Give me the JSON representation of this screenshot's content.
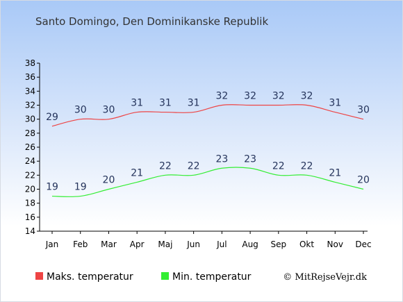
{
  "chart_data": {
    "type": "line",
    "title": "Santo Domingo, Den Dominikanske Republik",
    "categories": [
      "Jan",
      "Feb",
      "Mar",
      "Apr",
      "Maj",
      "Jun",
      "Jul",
      "Aug",
      "Sep",
      "Okt",
      "Nov",
      "Dec"
    ],
    "series": [
      {
        "name": "Maks. temperatur",
        "color": "#ee4444",
        "values": [
          29,
          30,
          30,
          31,
          31,
          31,
          32,
          32,
          32,
          32,
          31,
          30
        ]
      },
      {
        "name": "Min. temperatur",
        "color": "#33ee33",
        "values": [
          19,
          19,
          20,
          21,
          22,
          22,
          23,
          23,
          22,
          22,
          21,
          20
        ]
      }
    ],
    "ylim": [
      14,
      38
    ],
    "yticks": [
      14,
      16,
      18,
      20,
      22,
      24,
      26,
      28,
      30,
      32,
      34,
      36,
      38
    ],
    "grid": false,
    "legend_position": "bottom-left"
  },
  "copyright": "© MitRejseVejr.dk"
}
